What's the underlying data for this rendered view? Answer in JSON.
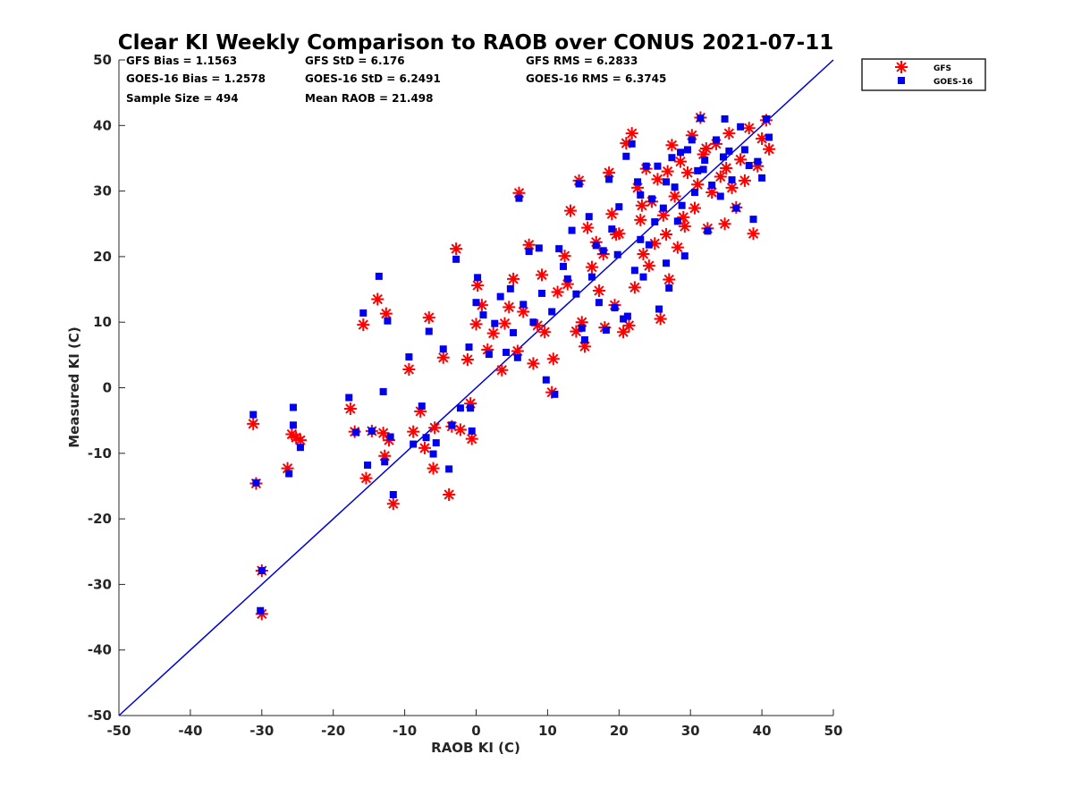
{
  "chart_data": {
    "type": "scatter",
    "title": "Clear KI Weekly Comparison to RAOB over CONUS 2021-07-11",
    "xlabel": "RAOB KI (C)",
    "ylabel": "Measured KI (C)",
    "xlim": [
      -50,
      50
    ],
    "ylim": [
      -50,
      50
    ],
    "xticks": [
      -50,
      -40,
      -30,
      -20,
      -10,
      0,
      10,
      20,
      30,
      40,
      50
    ],
    "yticks": [
      -50,
      -40,
      -30,
      -20,
      -10,
      0,
      10,
      20,
      30,
      40,
      50
    ],
    "grid": false,
    "legend_position": "outside-top-right",
    "reference_line": {
      "name": "1:1 line",
      "from": [
        -50,
        -50
      ],
      "to": [
        50,
        50
      ],
      "color": "#0000dd"
    },
    "stats": [
      "GFS Bias = 1.1563",
      "GFS StD = 6.176",
      "GFS RMS = 6.2833",
      "GOES-16 Bias = 1.2578",
      "GOES-16 StD = 6.2491",
      "GOES-16 RMS = 6.3745",
      "Sample Size = 494",
      "Mean RAOB = 21.498"
    ],
    "series": [
      {
        "name": "GFS",
        "marker": "asterisk",
        "color": "#ff0000",
        "points": [
          [
            -31.2,
            -5.5
          ],
          [
            -30.8,
            -14.6
          ],
          [
            -30,
            -27.9
          ],
          [
            -30,
            -34.5
          ],
          [
            -26.4,
            -12.3
          ],
          [
            -25.8,
            -7.1
          ],
          [
            -25.2,
            -7.6
          ],
          [
            -24.6,
            -8
          ],
          [
            -17.6,
            -3.2
          ],
          [
            -17,
            -6.7
          ],
          [
            -15.8,
            9.6
          ],
          [
            -15.4,
            -13.8
          ],
          [
            -14.6,
            -6.6
          ],
          [
            -13.8,
            13.5
          ],
          [
            -13,
            -6.9
          ],
          [
            -12.8,
            -10.4
          ],
          [
            -12.6,
            11.3
          ],
          [
            -12.2,
            -8
          ],
          [
            -11.6,
            -17.7
          ],
          [
            -9.4,
            2.8
          ],
          [
            -8.8,
            -6.7
          ],
          [
            -7.8,
            -3.6
          ],
          [
            -7.2,
            -9.2
          ],
          [
            -6.6,
            10.7
          ],
          [
            -6,
            -12.3
          ],
          [
            -5.8,
            -6.1
          ],
          [
            -4.6,
            4.6
          ],
          [
            -3.8,
            -16.3
          ],
          [
            -3.4,
            -5.9
          ],
          [
            -2.8,
            21.2
          ],
          [
            -2.2,
            -6.4
          ],
          [
            -1.2,
            4.3
          ],
          [
            -0.8,
            -2.4
          ],
          [
            -0.6,
            -7.8
          ],
          [
            0,
            9.7
          ],
          [
            0.2,
            15.6
          ],
          [
            0.8,
            12.6
          ],
          [
            1.6,
            5.8
          ],
          [
            2.4,
            8.3
          ],
          [
            3.6,
            2.7
          ],
          [
            4,
            9.8
          ],
          [
            4.6,
            12.3
          ],
          [
            5.2,
            16.6
          ],
          [
            5.8,
            5.6
          ],
          [
            6,
            29.7
          ],
          [
            6.6,
            11.6
          ],
          [
            7.4,
            21.8
          ],
          [
            8,
            3.7
          ],
          [
            8.6,
            9.5
          ],
          [
            9.2,
            17.2
          ],
          [
            9.6,
            8.5
          ],
          [
            10.6,
            -0.7
          ],
          [
            10.8,
            4.4
          ],
          [
            11.4,
            14.6
          ],
          [
            12.4,
            20.1
          ],
          [
            12.8,
            15.8
          ],
          [
            13.2,
            27
          ],
          [
            14,
            8.6
          ],
          [
            14.4,
            31.6
          ],
          [
            14.8,
            10
          ],
          [
            15.2,
            6.3
          ],
          [
            15.6,
            24.4
          ],
          [
            16.2,
            18.4
          ],
          [
            16.8,
            22.2
          ],
          [
            17.2,
            14.8
          ],
          [
            17.8,
            20.4
          ],
          [
            18,
            9.2
          ],
          [
            18.6,
            32.8
          ],
          [
            19,
            26.5
          ],
          [
            19.4,
            12.6
          ],
          [
            20,
            23.5
          ],
          [
            20.6,
            8.5
          ],
          [
            21,
            37.3
          ],
          [
            21.4,
            9.5
          ],
          [
            21.8,
            38.8
          ],
          [
            22.2,
            15.3
          ],
          [
            22.6,
            30.5
          ],
          [
            23,
            25.6
          ],
          [
            23.4,
            20.4
          ],
          [
            23.8,
            33.4
          ],
          [
            24.2,
            18.6
          ],
          [
            24.6,
            28.4
          ],
          [
            25,
            22
          ],
          [
            25.4,
            31.8
          ],
          [
            25.8,
            10.5
          ],
          [
            26.2,
            26.3
          ],
          [
            26.6,
            23.4
          ],
          [
            27,
            16.5
          ],
          [
            27.4,
            37
          ],
          [
            27.8,
            29.2
          ],
          [
            28.2,
            21.4
          ],
          [
            28.6,
            34.5
          ],
          [
            29.2,
            24.6
          ],
          [
            29.6,
            32.8
          ],
          [
            30.2,
            38.5
          ],
          [
            30.6,
            27.4
          ],
          [
            31,
            31
          ],
          [
            31.4,
            41.2
          ],
          [
            31.8,
            35.6
          ],
          [
            32.4,
            24.3
          ],
          [
            33,
            29.8
          ],
          [
            33.6,
            37.2
          ],
          [
            34.2,
            32.2
          ],
          [
            34.8,
            25
          ],
          [
            35.4,
            38.8
          ],
          [
            35.8,
            30.5
          ],
          [
            36.4,
            27.5
          ],
          [
            37,
            34.8
          ],
          [
            37.6,
            31.6
          ],
          [
            38.2,
            39.6
          ],
          [
            38.8,
            23.5
          ],
          [
            39.4,
            33.8
          ],
          [
            40,
            38
          ],
          [
            40.6,
            40.8
          ],
          [
            41,
            36.4
          ],
          [
            19.6,
            23.4
          ],
          [
            23.2,
            27.8
          ],
          [
            26.8,
            33
          ],
          [
            29,
            26
          ],
          [
            32.2,
            36.5
          ],
          [
            35,
            33.5
          ]
        ]
      },
      {
        "name": "GOES-16",
        "marker": "square",
        "color": "#0000ee",
        "points": [
          [
            -31.2,
            -4.1
          ],
          [
            -30.8,
            -14.5
          ],
          [
            -30,
            -27.9
          ],
          [
            -30.2,
            -34
          ],
          [
            -26.2,
            -13.1
          ],
          [
            -25.6,
            -3
          ],
          [
            -25.6,
            -5.7
          ],
          [
            -24.6,
            -9.1
          ],
          [
            -17.8,
            -1.5
          ],
          [
            -16.8,
            -6.8
          ],
          [
            -15.8,
            11.4
          ],
          [
            -15.2,
            -11.8
          ],
          [
            -14.6,
            -6.6
          ],
          [
            -13.6,
            17
          ],
          [
            -13,
            -0.6
          ],
          [
            -12.8,
            -11.3
          ],
          [
            -12.4,
            10.2
          ],
          [
            -12,
            -7.5
          ],
          [
            -11.6,
            -16.3
          ],
          [
            -9.4,
            4.7
          ],
          [
            -8.8,
            -8.6
          ],
          [
            -7.6,
            -2.8
          ],
          [
            -7,
            -7.6
          ],
          [
            -6.6,
            8.6
          ],
          [
            -6,
            -10.1
          ],
          [
            -5.6,
            -8.4
          ],
          [
            -4.6,
            5.9
          ],
          [
            -3.8,
            -12.4
          ],
          [
            -3.4,
            -5.7
          ],
          [
            -2.8,
            19.6
          ],
          [
            -2.2,
            -3.1
          ],
          [
            -1,
            6.2
          ],
          [
            -0.8,
            -3.1
          ],
          [
            -0.6,
            -6.6
          ],
          [
            0,
            13
          ],
          [
            0.2,
            16.8
          ],
          [
            1,
            11.1
          ],
          [
            1.8,
            5.1
          ],
          [
            2.6,
            9.8
          ],
          [
            3.4,
            13.9
          ],
          [
            4.2,
            5.4
          ],
          [
            4.8,
            15.1
          ],
          [
            5.2,
            8.4
          ],
          [
            5.8,
            4.6
          ],
          [
            6,
            28.9
          ],
          [
            6.6,
            12.7
          ],
          [
            7.4,
            20.8
          ],
          [
            8,
            10
          ],
          [
            8.8,
            21.3
          ],
          [
            9.2,
            14.4
          ],
          [
            9.8,
            1.2
          ],
          [
            10.6,
            11.6
          ],
          [
            11,
            -1
          ],
          [
            11.6,
            21.2
          ],
          [
            12.2,
            18.5
          ],
          [
            12.8,
            16.6
          ],
          [
            13.4,
            24
          ],
          [
            14,
            14.3
          ],
          [
            14.4,
            31.1
          ],
          [
            14.8,
            9.1
          ],
          [
            15.2,
            7.3
          ],
          [
            15.8,
            26.1
          ],
          [
            16.2,
            16.9
          ],
          [
            16.8,
            21.7
          ],
          [
            17.2,
            13
          ],
          [
            17.8,
            20.9
          ],
          [
            18.2,
            8.8
          ],
          [
            18.6,
            31.8
          ],
          [
            19,
            24.2
          ],
          [
            19.4,
            12.2
          ],
          [
            20,
            27.6
          ],
          [
            20.6,
            10.5
          ],
          [
            21,
            35.3
          ],
          [
            21.2,
            10.9
          ],
          [
            21.8,
            37.2
          ],
          [
            22.2,
            17.9
          ],
          [
            22.6,
            31.4
          ],
          [
            23,
            22.6
          ],
          [
            23.4,
            16.9
          ],
          [
            23.8,
            33.8
          ],
          [
            24.2,
            21.8
          ],
          [
            24.6,
            28.8
          ],
          [
            25,
            25.3
          ],
          [
            25.4,
            33.8
          ],
          [
            25.6,
            12
          ],
          [
            26.2,
            27.4
          ],
          [
            26.6,
            19
          ],
          [
            27,
            15.2
          ],
          [
            27.4,
            35.1
          ],
          [
            27.8,
            30.6
          ],
          [
            28.2,
            25.4
          ],
          [
            28.6,
            35.9
          ],
          [
            29.2,
            20.1
          ],
          [
            29.6,
            36.3
          ],
          [
            30.2,
            37.8
          ],
          [
            30.6,
            29.8
          ],
          [
            31,
            33.1
          ],
          [
            31.4,
            41.1
          ],
          [
            31.8,
            33.3
          ],
          [
            32.4,
            23.9
          ],
          [
            33,
            30.9
          ],
          [
            33.6,
            37.8
          ],
          [
            34.2,
            29.2
          ],
          [
            34.8,
            41
          ],
          [
            35.4,
            36.1
          ],
          [
            35.8,
            31.7
          ],
          [
            36.4,
            27.4
          ],
          [
            37,
            39.8
          ],
          [
            37.6,
            36.3
          ],
          [
            38.2,
            33.9
          ],
          [
            38.8,
            25.7
          ],
          [
            39.4,
            34.5
          ],
          [
            40,
            32
          ],
          [
            40.6,
            41
          ],
          [
            41,
            38.2
          ],
          [
            19.8,
            20.3
          ],
          [
            23,
            29.4
          ],
          [
            26.6,
            31.4
          ],
          [
            28.8,
            27.8
          ],
          [
            32,
            34.7
          ],
          [
            34.6,
            35.2
          ]
        ]
      }
    ]
  }
}
